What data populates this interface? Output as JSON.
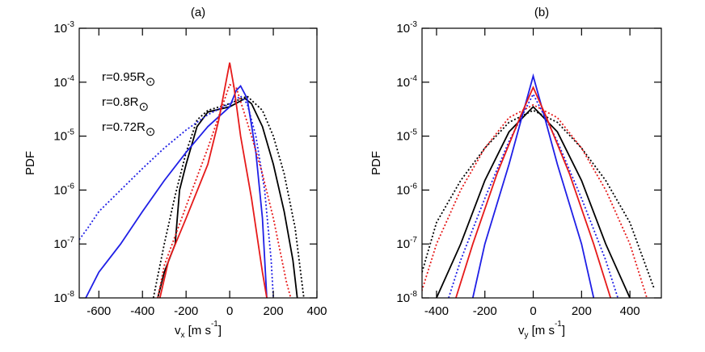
{
  "chart_data": [
    {
      "type": "line",
      "title": "(a)",
      "y_label": "PDF",
      "x_label": [
        {
          "text": "v"
        },
        {
          "text": "x",
          "sub": true
        },
        {
          "text": " [m s"
        },
        {
          "text": "-1",
          "sup": true
        },
        {
          "text": "]"
        }
      ],
      "xlim": [
        -690,
        400
      ],
      "xticks": [
        -600,
        -400,
        -200,
        0,
        200,
        400
      ],
      "ylim": [
        1e-08,
        0.001
      ],
      "log_y": true,
      "yticks": [
        {
          "value": 1e-08,
          "label": "10-8"
        },
        {
          "value": 1e-07,
          "label": "10-7"
        },
        {
          "value": 1e-06,
          "label": "10-6"
        },
        {
          "value": 1e-05,
          "label": "10-5"
        },
        {
          "value": 0.0001,
          "label": "10-4"
        },
        {
          "value": 0.001,
          "label": "10-3"
        }
      ],
      "legend": "upper left",
      "series": [
        {
          "name": "r=0.95R⊙",
          "color": "#000000",
          "style": "solid",
          "x": [
            -330,
            -300,
            -250,
            -230,
            -200,
            -150,
            -100,
            0,
            50,
            70,
            100,
            150,
            200,
            250,
            290,
            310
          ],
          "values": [
            1e-08,
            3e-08,
            1e-07,
            1e-06,
            3e-06,
            1.5e-05,
            2.8e-05,
            3.5e-05,
            4.5e-05,
            5e-05,
            4e-05,
            1.5e-05,
            3e-06,
            4e-07,
            5e-08,
            1e-08
          ]
        },
        {
          "color": "#000000",
          "style": "dotted",
          "x": [
            -350,
            -300,
            -250,
            -200,
            -150,
            -100,
            0,
            80,
            150,
            200,
            250,
            300,
            340
          ],
          "values": [
            1e-08,
            1e-07,
            8e-07,
            5e-06,
            2e-05,
            3e-05,
            4e-05,
            5.5e-05,
            3e-05,
            1e-05,
            2e-06,
            2e-07,
            1e-08
          ]
        },
        {
          "name": "r=0.8R⊙",
          "color": "#1f1fe6",
          "style": "solid",
          "x": [
            -660,
            -600,
            -500,
            -400,
            -300,
            -200,
            -100,
            0,
            30,
            50,
            80,
            120,
            150,
            170
          ],
          "values": [
            1e-08,
            3e-08,
            1e-07,
            4e-07,
            1.5e-06,
            5e-06,
            1.5e-05,
            3.5e-05,
            7e-05,
            8.5e-05,
            5e-05,
            5e-06,
            3e-07,
            1e-08
          ]
        },
        {
          "color": "#1f1fe6",
          "style": "dotted",
          "x": [
            -690,
            -650,
            -600,
            -500,
            -400,
            -300,
            -200,
            -100,
            0,
            50,
            80,
            120,
            160,
            190,
            200
          ],
          "values": [
            1.2e-07,
            2e-07,
            4e-07,
            1e-06,
            2.5e-06,
            6e-06,
            1.3e-05,
            2.5e-05,
            4e-05,
            5.5e-05,
            4e-05,
            1e-05,
            1e-06,
            5e-08,
            1e-08
          ]
        },
        {
          "name": "r=0.72R⊙",
          "color": "#e61a1a",
          "style": "solid",
          "x": [
            -320,
            -280,
            -200,
            -100,
            -50,
            0,
            20,
            50,
            100,
            150,
            170
          ],
          "values": [
            1e-08,
            5e-08,
            3e-07,
            3e-06,
            2e-05,
            0.00023,
            8e-05,
            1e-05,
            7e-07,
            3e-08,
            1e-08
          ]
        },
        {
          "color": "#e61a1a",
          "style": "dotted",
          "x": [
            -330,
            -300,
            -200,
            -100,
            -30,
            0,
            30,
            100,
            150,
            200,
            260,
            280
          ],
          "values": [
            1e-08,
            4e-08,
            5e-07,
            6e-06,
            4e-05,
            9e-05,
            8e-05,
            1e-05,
            2e-06,
            3e-07,
            2e-08,
            1e-08
          ]
        }
      ]
    },
    {
      "type": "line",
      "title": "(b)",
      "y_label": "PDF",
      "x_label": [
        {
          "text": "v"
        },
        {
          "text": "y",
          "sub": true
        },
        {
          "text": " [m s"
        },
        {
          "text": "-1",
          "sup": true
        },
        {
          "text": "]"
        }
      ],
      "xlim": [
        -460,
        530
      ],
      "xticks": [
        -400,
        -200,
        0,
        200,
        400
      ],
      "ylim": [
        1e-08,
        0.001
      ],
      "log_y": true,
      "yticks": [
        {
          "value": 1e-08,
          "label": "10-8"
        },
        {
          "value": 1e-07,
          "label": "10-7"
        },
        {
          "value": 1e-06,
          "label": "10-6"
        },
        {
          "value": 1e-05,
          "label": "10-5"
        },
        {
          "value": 0.0001,
          "label": "10-4"
        },
        {
          "value": 0.001,
          "label": "10-3"
        }
      ],
      "series": [
        {
          "color": "#000000",
          "style": "solid",
          "x": [
            -400,
            -300,
            -200,
            -100,
            0,
            100,
            200,
            300,
            400
          ],
          "values": [
            1e-08,
            1e-07,
            1.5e-06,
            1.2e-05,
            3.5e-05,
            1.2e-05,
            1.5e-06,
            1e-07,
            1e-08
          ]
        },
        {
          "color": "#000000",
          "style": "dotted",
          "x": [
            -460,
            -400,
            -300,
            -200,
            -100,
            0,
            100,
            200,
            300,
            400,
            500
          ],
          "values": [
            3e-08,
            2.5e-07,
            1.5e-06,
            6e-06,
            1.8e-05,
            3e-05,
            1.8e-05,
            6e-06,
            1.5e-06,
            2.5e-07,
            1.5e-08
          ]
        },
        {
          "color": "#1f1fe6",
          "style": "solid",
          "x": [
            -250,
            -200,
            -100,
            -50,
            0,
            50,
            100,
            200,
            250
          ],
          "values": [
            1e-08,
            1e-07,
            3e-06,
            2e-05,
            0.00013,
            2e-05,
            3e-06,
            1e-07,
            1e-08
          ]
        },
        {
          "color": "#1f1fe6",
          "style": "dotted",
          "x": [
            -350,
            -300,
            -200,
            -100,
            0,
            100,
            200,
            300,
            350
          ],
          "values": [
            1e-08,
            5e-08,
            7e-07,
            8e-06,
            6e-05,
            8e-06,
            7e-07,
            5e-08,
            1e-08
          ]
        },
        {
          "color": "#e61a1a",
          "style": "solid",
          "x": [
            -320,
            -250,
            -150,
            -50,
            0,
            50,
            150,
            250,
            320
          ],
          "values": [
            1e-08,
            1e-07,
            2e-06,
            2.5e-05,
            8e-05,
            2.5e-05,
            2e-06,
            1e-07,
            1e-08
          ]
        },
        {
          "color": "#e61a1a",
          "style": "dotted",
          "x": [
            -470,
            -400,
            -300,
            -200,
            -100,
            0,
            100,
            200,
            300,
            400,
            470
          ],
          "values": [
            1e-08,
            1e-07,
            1e-06,
            6e-06,
            2.2e-05,
            3.8e-05,
            2.2e-05,
            6e-06,
            1e-06,
            1e-07,
            1e-08
          ]
        }
      ]
    }
  ]
}
